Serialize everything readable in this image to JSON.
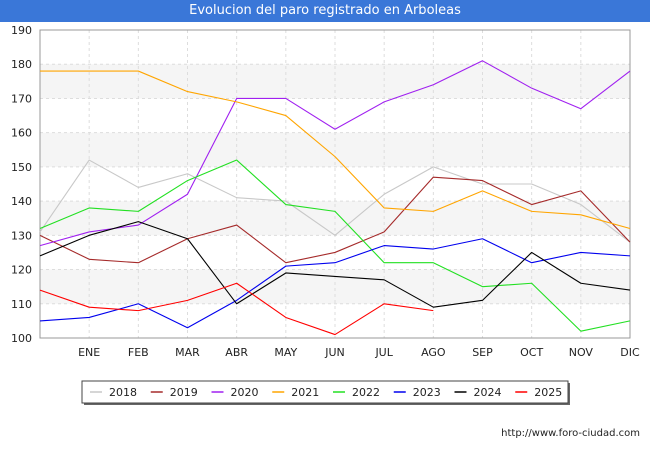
{
  "header": {
    "title": "Evolucion del paro registrado en Arboleas"
  },
  "footer": {
    "url": "http://www.foro-ciudad.com"
  },
  "chart_data": {
    "type": "line",
    "title": "Evolucion del paro registrado en Arboleas",
    "xlabel": "",
    "ylabel": "",
    "ylim": [
      100,
      190
    ],
    "yticks": [
      100,
      110,
      120,
      130,
      140,
      150,
      160,
      170,
      180,
      190
    ],
    "categories": [
      "",
      "ENE",
      "FEB",
      "MAR",
      "ABR",
      "MAY",
      "JUN",
      "JUL",
      "AGO",
      "SEP",
      "OCT",
      "NOV",
      "DIC"
    ],
    "grid": true,
    "legend_position": "bottom",
    "series": [
      {
        "name": "2018",
        "color": "#c8c8c8",
        "values": [
          131,
          152,
          144,
          148,
          141,
          140,
          130,
          142,
          150,
          145,
          145,
          139,
          128
        ]
      },
      {
        "name": "2019",
        "color": "#a52a2a",
        "values": [
          130,
          123,
          122,
          129,
          133,
          122,
          125,
          131,
          147,
          146,
          139,
          143,
          128
        ]
      },
      {
        "name": "2020",
        "color": "#a020f0",
        "values": [
          127,
          131,
          133,
          142,
          170,
          170,
          161,
          169,
          174,
          181,
          173,
          167,
          178
        ]
      },
      {
        "name": "2021",
        "color": "#ffa500",
        "values": [
          178,
          178,
          178,
          172,
          169,
          165,
          153,
          138,
          137,
          143,
          137,
          136,
          132
        ]
      },
      {
        "name": "2022",
        "color": "#22e022",
        "values": [
          132,
          138,
          137,
          146,
          152,
          139,
          137,
          122,
          122,
          115,
          116,
          102,
          105
        ]
      },
      {
        "name": "2023",
        "color": "#0000ee",
        "values": [
          105,
          106,
          110,
          103,
          111,
          121,
          122,
          127,
          126,
          129,
          122,
          125,
          124
        ]
      },
      {
        "name": "2024",
        "color": "#000000",
        "values": [
          124,
          130,
          134,
          129,
          110,
          119,
          118,
          117,
          109,
          111,
          125,
          116,
          114
        ]
      },
      {
        "name": "2025",
        "color": "#ff0000",
        "values": [
          114,
          109,
          108,
          111,
          116,
          106,
          101,
          110,
          108,
          null,
          null,
          null,
          null
        ]
      }
    ]
  }
}
